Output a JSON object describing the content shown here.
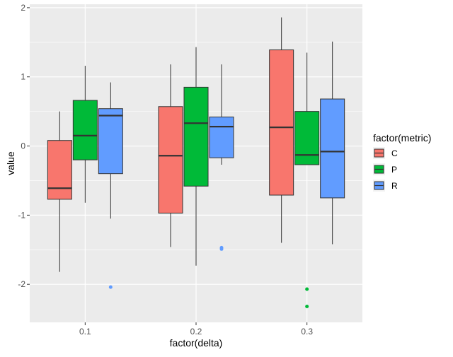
{
  "chart_data": {
    "type": "boxplot",
    "xlabel": "factor(delta)",
    "ylabel": "value",
    "categories": [
      "0.1",
      "0.2",
      "0.3"
    ],
    "ylim": [
      -2.55,
      2.05
    ],
    "yticks": [
      -2,
      -1,
      0,
      1,
      2
    ],
    "yticklabels": [
      "-2",
      "-1",
      "0",
      "1",
      "2"
    ],
    "grid": true,
    "legend": {
      "title": "factor(metric)",
      "position": "right",
      "entries": [
        "C",
        "P",
        "R"
      ]
    },
    "series": [
      {
        "name": "C",
        "color": "#F8766D",
        "boxes": [
          {
            "whisker_low": -1.82,
            "q1": -0.77,
            "median": -0.61,
            "q3": 0.08,
            "whisker_high": 0.5,
            "outliers": []
          },
          {
            "whisker_low": -1.46,
            "q1": -0.97,
            "median": -0.14,
            "q3": 0.57,
            "whisker_high": 1.18,
            "outliers": []
          },
          {
            "whisker_low": -1.4,
            "q1": -0.71,
            "median": 0.27,
            "q3": 1.39,
            "whisker_high": 1.86,
            "outliers": []
          }
        ]
      },
      {
        "name": "P",
        "color": "#00BA38",
        "boxes": [
          {
            "whisker_low": -0.82,
            "q1": -0.2,
            "median": 0.15,
            "q3": 0.66,
            "whisker_high": 1.16,
            "outliers": []
          },
          {
            "whisker_low": -1.73,
            "q1": -0.58,
            "median": 0.33,
            "q3": 0.85,
            "whisker_high": 1.43,
            "outliers": []
          },
          {
            "whisker_low": -0.27,
            "q1": -0.27,
            "median": -0.13,
            "q3": 0.5,
            "whisker_high": 1.35,
            "outliers": [
              -2.07,
              -2.32
            ]
          }
        ]
      },
      {
        "name": "R",
        "color": "#619CFF",
        "boxes": [
          {
            "whisker_low": -1.05,
            "q1": -0.4,
            "median": 0.44,
            "q3": 0.54,
            "whisker_high": 0.92,
            "outliers": [
              -2.04
            ]
          },
          {
            "whisker_low": -0.27,
            "q1": -0.17,
            "median": 0.28,
            "q3": 0.42,
            "whisker_high": 1.18,
            "outliers": [
              -1.47,
              -1.49
            ]
          },
          {
            "whisker_low": -1.42,
            "q1": -0.75,
            "median": -0.08,
            "q3": 0.68,
            "whisker_high": 1.51,
            "outliers": []
          }
        ]
      }
    ]
  }
}
